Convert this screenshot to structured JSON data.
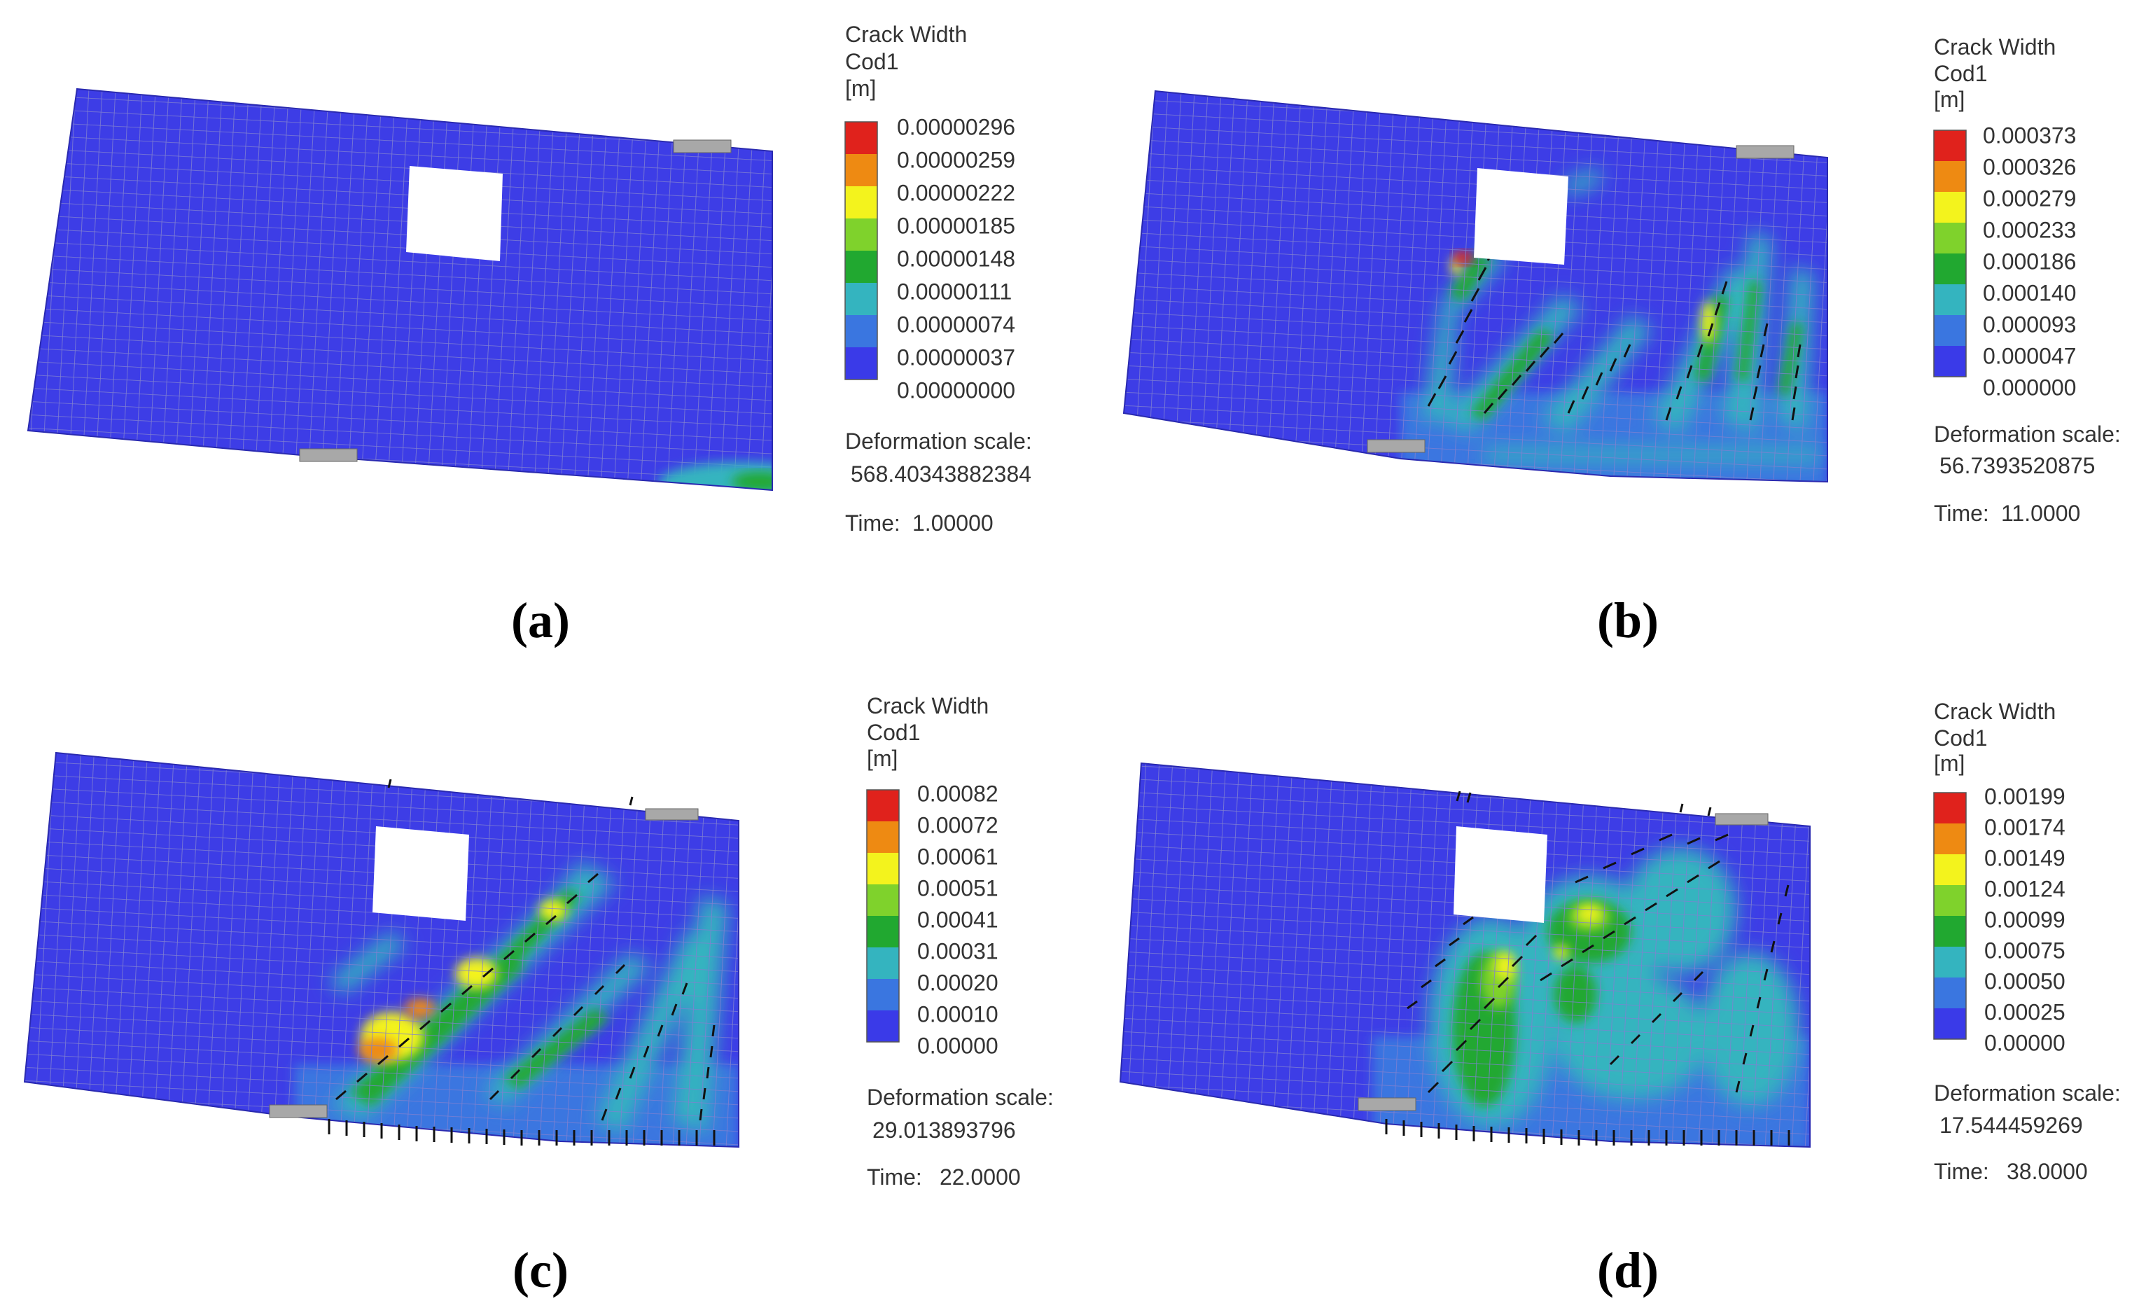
{
  "colors": {
    "scale": [
      "#3a3ae8",
      "#3a76e0",
      "#34b4bf",
      "#21a830",
      "#7fd22c",
      "#f3f31d",
      "#ee8a12",
      "#e0221c"
    ],
    "mesh_base": "#3d3de6",
    "grid_line": "#7a7ac8",
    "support": "#a8a8a8"
  },
  "panels": [
    {
      "id": "a",
      "caption": "(a)",
      "legend": {
        "title": [
          "Crack Width",
          "Cod1",
          "[m]"
        ],
        "values": [
          "0.00000296",
          "0.00000259",
          "0.00000222",
          "0.00000185",
          "0.00000148",
          "0.00000111",
          "0.00000074",
          "0.00000037",
          "0.00000000"
        ],
        "deformation_label": "Deformation scale:",
        "deformation_value": "568.40343882384",
        "time_label": "Time:",
        "time_value": "1.00000"
      }
    },
    {
      "id": "b",
      "caption": "(b)",
      "legend": {
        "title": [
          "Crack Width",
          "Cod1",
          "[m]"
        ],
        "values": [
          "0.000373",
          "0.000326",
          "0.000279",
          "0.000233",
          "0.000186",
          "0.000140",
          "0.000093",
          "0.000047",
          "0.000000"
        ],
        "deformation_label": "Deformation scale:",
        "deformation_value": "56.7393520875",
        "time_label": "Time:",
        "time_value": "11.0000"
      }
    },
    {
      "id": "c",
      "caption": "(c)",
      "legend": {
        "title": [
          "Crack Width",
          "Cod1",
          "[m]"
        ],
        "values": [
          "0.00082",
          "0.00072",
          "0.00061",
          "0.00051",
          "0.00041",
          "0.00031",
          "0.00020",
          "0.00010",
          "0.00000"
        ],
        "deformation_label": "Deformation scale:",
        "deformation_value": "29.013893796",
        "time_label": "Time:",
        "time_value": "22.0000"
      }
    },
    {
      "id": "d",
      "caption": "(d)",
      "legend": {
        "title": [
          "Crack Width",
          "Cod1",
          "[m]"
        ],
        "values": [
          "0.00199",
          "0.00174",
          "0.00149",
          "0.00124",
          "0.00099",
          "0.00075",
          "0.00050",
          "0.00025",
          "0.00000"
        ],
        "deformation_label": "Deformation scale:",
        "deformation_value": "17.544459269",
        "time_label": "Time:",
        "time_value": "38.0000"
      }
    }
  ]
}
